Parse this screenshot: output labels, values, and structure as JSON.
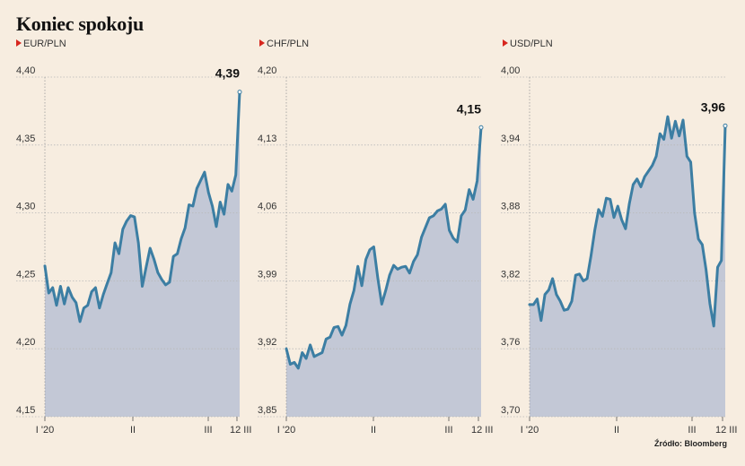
{
  "title": "Koniec spokoju",
  "source": "Źródło: Bloomberg",
  "colors": {
    "background": "#f7ede0",
    "line": "#3c7ea3",
    "area": "#c3c8d6",
    "grid": "#b8b8b8",
    "marker": "#d7261e"
  },
  "chart_data": [
    {
      "type": "area",
      "series_name": "EUR/PLN",
      "ylim": [
        4.15,
        4.4
      ],
      "yticks": [
        "4,40",
        "4,35",
        "4,30",
        "4,25",
        "4,20",
        "4,15"
      ],
      "xtick_labels": [
        "I '20",
        "II",
        "III",
        "12 III"
      ],
      "end_label": "4,39",
      "values": [
        4.261,
        4.241,
        4.245,
        4.232,
        4.246,
        4.233,
        4.245,
        4.238,
        4.234,
        4.22,
        4.23,
        4.232,
        4.242,
        4.245,
        4.23,
        4.24,
        4.248,
        4.256,
        4.278,
        4.27,
        4.288,
        4.294,
        4.298,
        4.297,
        4.278,
        4.246,
        4.26,
        4.274,
        4.266,
        4.256,
        4.251,
        4.247,
        4.249,
        4.268,
        4.27,
        4.281,
        4.289,
        4.306,
        4.305,
        4.318,
        4.324,
        4.33,
        4.315,
        4.305,
        4.29,
        4.308,
        4.299,
        4.321,
        4.316,
        4.328,
        4.389
      ]
    },
    {
      "type": "area",
      "series_name": "CHF/PLN",
      "ylim": [
        3.85,
        4.2
      ],
      "yticks": [
        "4,20",
        "4,13",
        "4,06",
        "3,99",
        "3,92",
        "3,85"
      ],
      "xtick_labels": [
        "I '20",
        "II",
        "III",
        "12 III"
      ],
      "end_label": "4,15",
      "values": [
        3.92,
        3.904,
        3.906,
        3.9,
        3.916,
        3.91,
        3.924,
        3.912,
        3.914,
        3.916,
        3.93,
        3.932,
        3.942,
        3.943,
        3.934,
        3.944,
        3.966,
        3.98,
        4.005,
        3.985,
        4.012,
        4.022,
        4.025,
        3.993,
        3.966,
        3.98,
        3.996,
        4.006,
        4.002,
        4.004,
        4.005,
        3.998,
        4.01,
        4.017,
        4.035,
        4.045,
        4.055,
        4.057,
        4.062,
        4.064,
        4.069,
        4.042,
        4.034,
        4.03,
        4.057,
        4.063,
        4.084,
        4.074,
        4.093,
        4.148
      ]
    },
    {
      "type": "area",
      "series_name": "USD/PLN",
      "ylim": [
        3.7,
        4.0
      ],
      "yticks": [
        "4,00",
        "3,94",
        "3,88",
        "3,82",
        "3,76",
        "3,70"
      ],
      "xtick_labels": [
        "I '20",
        "II",
        "III",
        "12 III"
      ],
      "end_label": "3,96",
      "values": [
        3.799,
        3.799,
        3.804,
        3.785,
        3.808,
        3.812,
        3.822,
        3.808,
        3.802,
        3.794,
        3.795,
        3.802,
        3.825,
        3.826,
        3.82,
        3.822,
        3.842,
        3.865,
        3.883,
        3.877,
        3.893,
        3.892,
        3.876,
        3.886,
        3.874,
        3.866,
        3.888,
        3.905,
        3.91,
        3.903,
        3.912,
        3.917,
        3.922,
        3.93,
        3.95,
        3.945,
        3.965,
        3.946,
        3.961,
        3.948,
        3.962,
        3.93,
        3.925,
        3.88,
        3.857,
        3.852,
        3.83,
        3.8,
        3.78,
        3.832,
        3.838,
        3.957
      ]
    }
  ]
}
